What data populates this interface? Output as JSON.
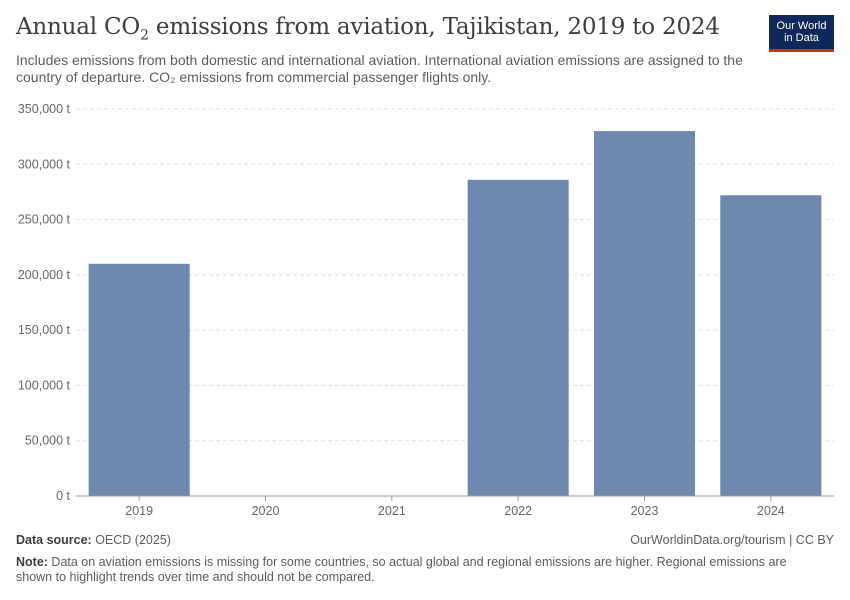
{
  "header": {
    "title_prefix": "Annual CO",
    "title_sub": "2",
    "title_suffix": " emissions from aviation, Tajikistan, 2019 to 2024",
    "subtitle": "Includes emissions from both domestic and international aviation. International aviation emissions are assigned to the country of departure. CO₂ emissions from commercial passenger flights only."
  },
  "logo": {
    "line1": "Our World",
    "line2": "in Data"
  },
  "colors": {
    "bar": "#6f88b0",
    "grid": "#dddddd",
    "axis": "#999999",
    "logo_bg": "#0f2a5a",
    "logo_accent": "#d42b21"
  },
  "chart_data": {
    "type": "bar",
    "title": "Annual CO₂ emissions from aviation, Tajikistan, 2019 to 2024",
    "categories": [
      "2019",
      "2020",
      "2021",
      "2022",
      "2023",
      "2024"
    ],
    "values": [
      210000,
      null,
      null,
      286000,
      330000,
      272000
    ],
    "unit": "t",
    "ylim": [
      0,
      350000
    ],
    "yticks": [
      0,
      50000,
      100000,
      150000,
      200000,
      250000,
      300000,
      350000
    ],
    "ytick_labels": [
      "0 t",
      "50,000 t",
      "100,000 t",
      "150,000 t",
      "200,000 t",
      "250,000 t",
      "300,000 t",
      "350,000 t"
    ],
    "xlabel": "",
    "ylabel": "",
    "grid": true
  },
  "footer": {
    "source_label": "Data source:",
    "source_value": " OECD (2025)",
    "license": "OurWorldinData.org/tourism | CC BY",
    "note_label": "Note:",
    "note_value": " Data on aviation emissions is missing for some countries, so actual global and regional emissions are higher. Regional emissions are shown to highlight trends over time and should not be compared."
  }
}
